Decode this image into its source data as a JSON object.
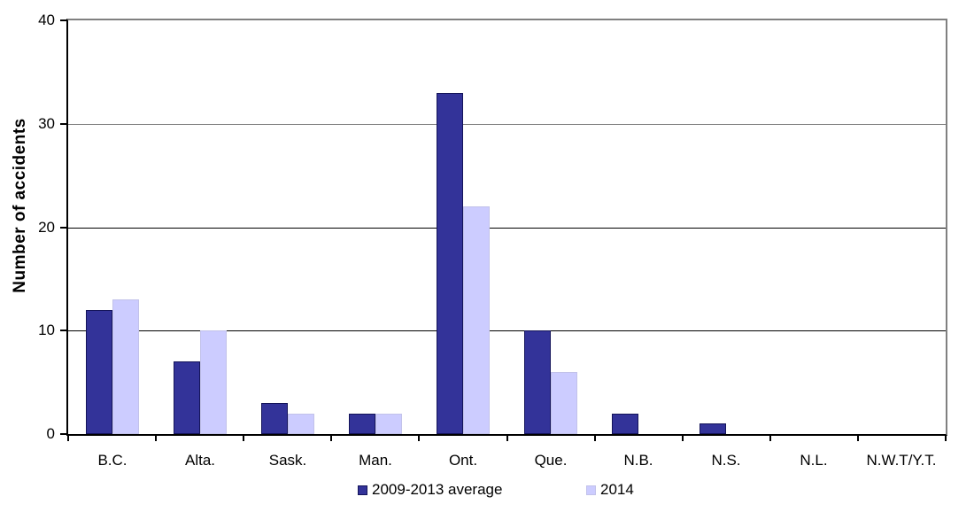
{
  "chart_data": {
    "type": "bar",
    "title": "",
    "ylabel": "Number of accidents",
    "xlabel": "",
    "categories": [
      "B.C.",
      "Alta.",
      "Sask.",
      "Man.",
      "Ont.",
      "Que.",
      "N.B.",
      "N.S.",
      "N.L.",
      "N.W.T/Y.T."
    ],
    "series": [
      {
        "name": "2009-2013 average",
        "color": "#333399",
        "border_color": "#14145a",
        "values": [
          12,
          7,
          3,
          2,
          33,
          10,
          2,
          1,
          0,
          0
        ]
      },
      {
        "name": "2014",
        "color": "#ccccff",
        "border_color": "#c2c2ea",
        "values": [
          13,
          10,
          2,
          2,
          22,
          6,
          0,
          0,
          0,
          0
        ]
      }
    ],
    "ylim": [
      0,
      40
    ],
    "yticks": [
      0,
      10,
      20,
      30,
      40
    ],
    "grid": "horizontal-major",
    "gridline_colors": {
      "10": "#000000",
      "20": "#000000",
      "30": "#808080"
    },
    "plot_border": {
      "top": "#808080",
      "right": "#808080",
      "left": "#000000",
      "bottom": "#000000"
    },
    "legend_position": "bottom-center",
    "background_color": "#ffffff"
  }
}
